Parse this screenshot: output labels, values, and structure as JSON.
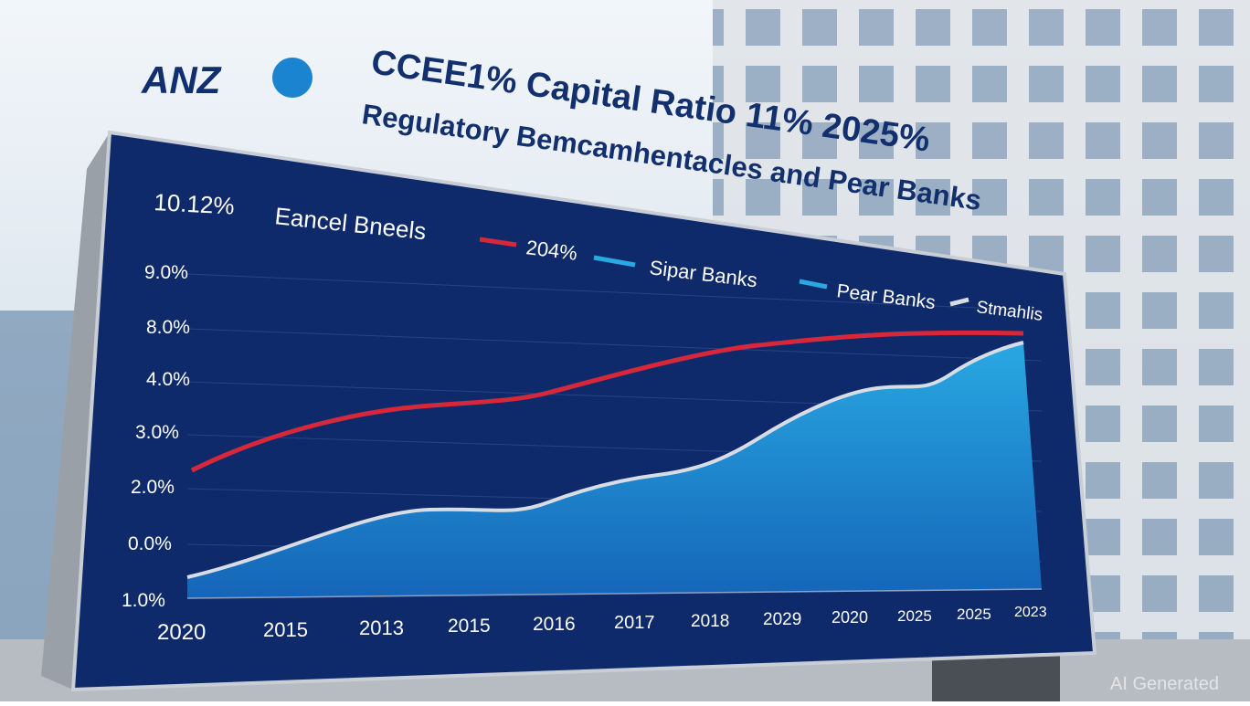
{
  "logo": "ANZ",
  "headline": {
    "title": "CCEE1% Capital Ratio 11% 2025%",
    "subtitle": "Regulatory Bemcamhentacles and Pear Banks"
  },
  "board": {
    "corner_value": "10.12%",
    "caption": "Eancel Bneels",
    "legend": [
      "204%",
      "Sipar Banks",
      "Pear Banks",
      "Stmahlis"
    ],
    "y_labels": [
      "9.0%",
      "8.0%",
      "4.0%",
      "3.0%",
      "2.0%",
      "0.0%",
      "1.0%"
    ],
    "x_labels": [
      "2020",
      "2015",
      "2013",
      "2015",
      "2016",
      "2017",
      "2018",
      "2029",
      "2020",
      "2025",
      "2025",
      "2023"
    ]
  },
  "watermark": "AI Generated"
}
